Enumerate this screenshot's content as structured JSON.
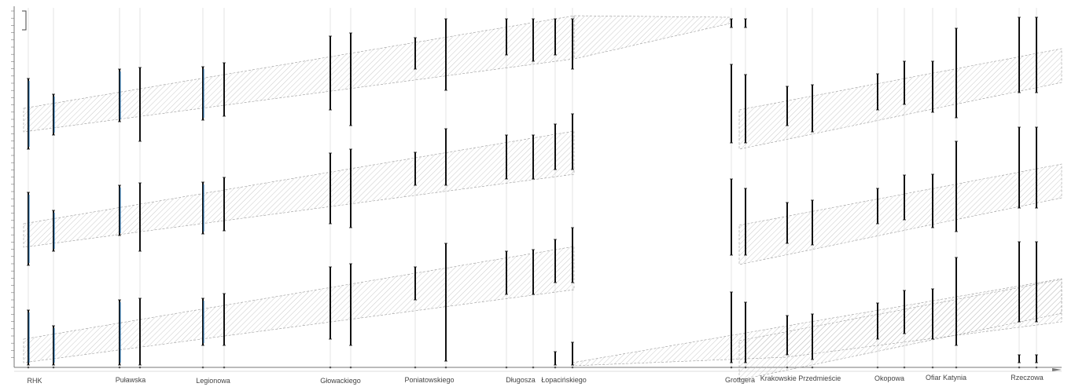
{
  "diagram": {
    "streets": [
      "RHK",
      "Puławska",
      "Legionowa",
      "Głowackiego",
      "Poniatowskiego",
      "Długosza",
      "Łopacińskiego",
      "Grottgera",
      "Krakowskie Przedmieście",
      "Okopowa",
      "Ofiar Katynia",
      "Rzeczowa"
    ],
    "colors": {
      "signal_bar": "#111111",
      "signal_bar_accent": "#1f6fb2",
      "band_line": "#9a9a9a",
      "band_hatch": "#bdbdbd",
      "guide_line": "#d8d8d8",
      "axis": "#777777"
    },
    "green_wave_bands": 3
  }
}
